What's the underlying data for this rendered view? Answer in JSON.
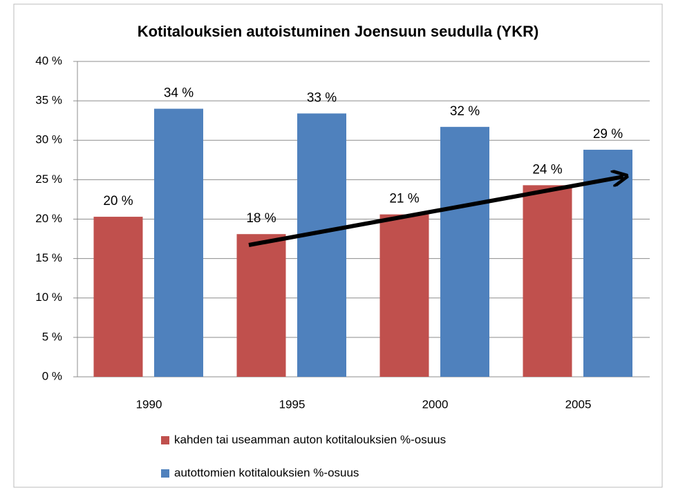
{
  "chart_data": {
    "type": "bar",
    "title": "Kotitalouksien autoistuminen Joensuun seudulla (YKR)",
    "categories": [
      "1990",
      "1995",
      "2000",
      "2005"
    ],
    "series": [
      {
        "name": "kahden tai useamman auton kotitalouksien %-osuus",
        "color": "#c0504d",
        "values": [
          20.3,
          18.1,
          20.6,
          24.3
        ],
        "value_labels": [
          "20 %",
          "18 %",
          "21 %",
          "24 %"
        ]
      },
      {
        "name": "autottomien kotitalouksien %-osuus",
        "color": "#4f81bd",
        "values": [
          34.0,
          33.4,
          31.7,
          28.8
        ],
        "value_labels": [
          "34 %",
          "33 %",
          "32 %",
          "29 %"
        ]
      }
    ],
    "ylim": [
      0,
      40
    ],
    "yticks": [
      {
        "value": 0,
        "label": "0 %"
      },
      {
        "value": 5,
        "label": "5 %"
      },
      {
        "value": 10,
        "label": "10 %"
      },
      {
        "value": 15,
        "label": "15 %"
      },
      {
        "value": 20,
        "label": "20 %"
      },
      {
        "value": 25,
        "label": "25 %"
      },
      {
        "value": 30,
        "label": "30 %"
      },
      {
        "value": 35,
        "label": "35 %"
      },
      {
        "value": 40,
        "label": "40 %"
      }
    ],
    "grid": true,
    "legend": "bottom"
  }
}
